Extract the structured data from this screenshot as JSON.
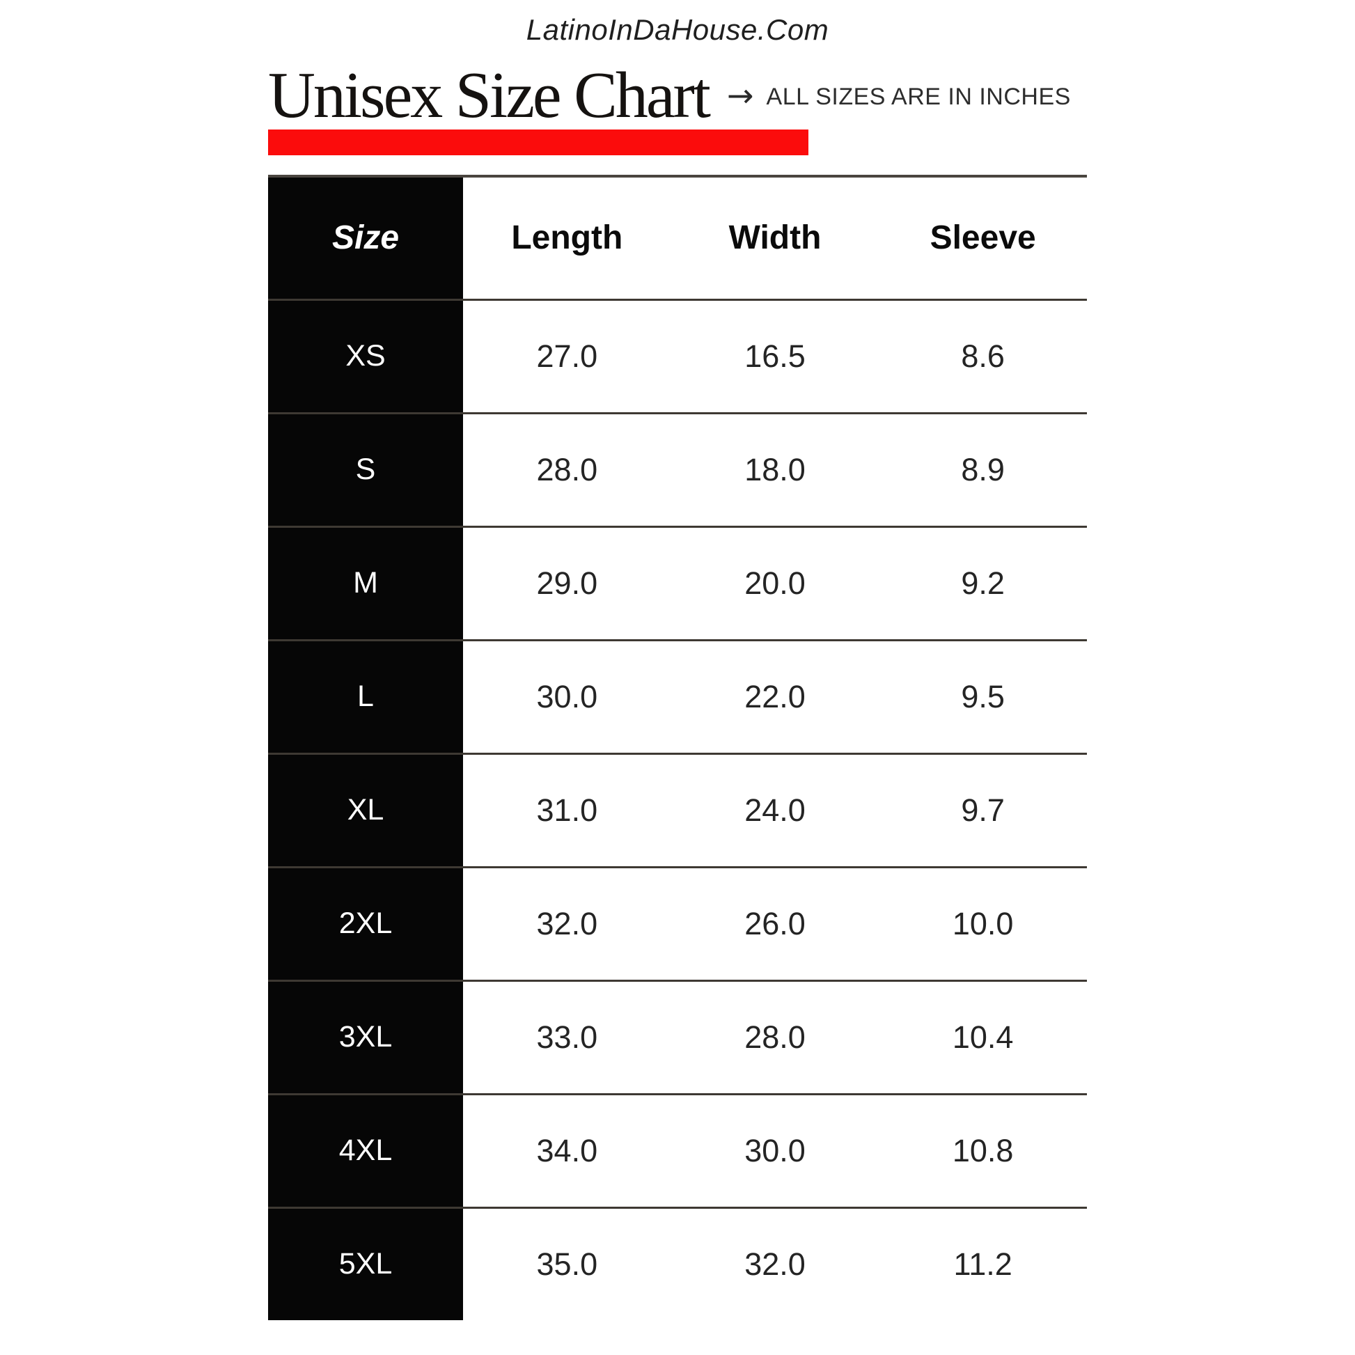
{
  "site": "LatinoInDaHouse.Com",
  "header": {
    "title": "Unisex Size Chart",
    "arrow": "→",
    "note": "ALL SIZES ARE IN INCHES"
  },
  "colors": {
    "accent_red": "#fb0c0c",
    "table_black": "#060606",
    "divider": "#3e3933",
    "top_border": "#4a453f"
  },
  "chart_data": {
    "type": "table",
    "title": "Unisex Size Chart",
    "unit": "inches",
    "columns": [
      "Size",
      "Length",
      "Width",
      "Sleeve"
    ],
    "rows": [
      {
        "size": "XS",
        "length": "27.0",
        "width": "16.5",
        "sleeve": "8.6"
      },
      {
        "size": "S",
        "length": "28.0",
        "width": "18.0",
        "sleeve": "8.9"
      },
      {
        "size": "M",
        "length": "29.0",
        "width": "20.0",
        "sleeve": "9.2"
      },
      {
        "size": "L",
        "length": "30.0",
        "width": "22.0",
        "sleeve": "9.5"
      },
      {
        "size": "XL",
        "length": "31.0",
        "width": "24.0",
        "sleeve": "9.7"
      },
      {
        "size": "2XL",
        "length": "32.0",
        "width": "26.0",
        "sleeve": "10.0"
      },
      {
        "size": "3XL",
        "length": "33.0",
        "width": "28.0",
        "sleeve": "10.4"
      },
      {
        "size": "4XL",
        "length": "34.0",
        "width": "30.0",
        "sleeve": "10.8"
      },
      {
        "size": "5XL",
        "length": "35.0",
        "width": "32.0",
        "sleeve": "11.2"
      }
    ]
  }
}
